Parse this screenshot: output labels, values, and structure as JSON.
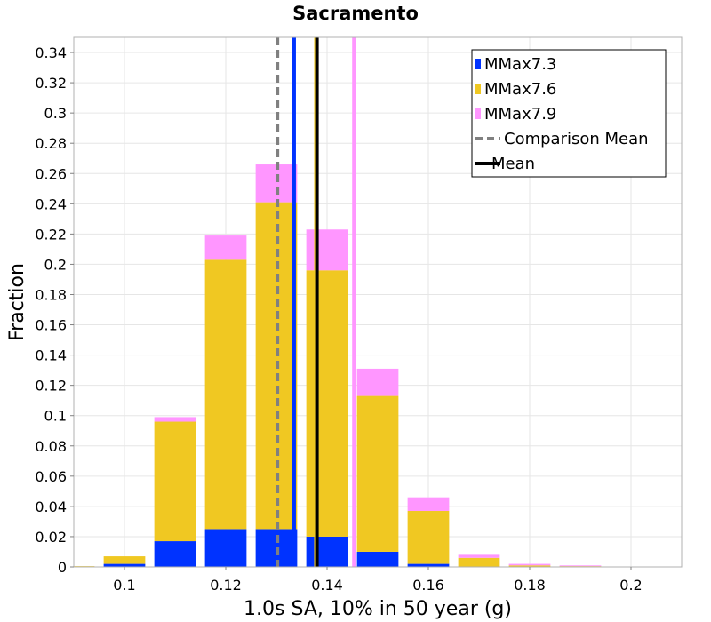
{
  "chart_data": {
    "type": "bar",
    "stacked": true,
    "title": "Sacramento",
    "xlabel": "1.0s SA, 10% in 50 year (g)",
    "ylabel": "Fraction",
    "xlim": [
      0.09,
      0.21
    ],
    "ylim": [
      0,
      0.35
    ],
    "xticks": [
      0.1,
      0.12,
      0.14,
      0.16,
      0.18,
      0.2
    ],
    "xtick_labels": [
      "0.1",
      "0.12",
      "0.14",
      "0.16",
      "0.18",
      "0.2"
    ],
    "yticks": [
      0,
      0.02,
      0.04,
      0.06,
      0.08,
      0.1,
      0.12,
      0.14,
      0.16,
      0.18,
      0.2,
      0.22,
      0.24,
      0.26,
      0.28,
      0.3,
      0.32,
      0.34
    ],
    "ytick_labels": [
      "0",
      "0.02",
      "0.04",
      "0.06",
      "0.08",
      "0.1",
      "0.12",
      "0.14",
      "0.16",
      "0.18",
      "0.2",
      "0.22",
      "0.24",
      "0.26",
      "0.28",
      "0.3",
      "0.32",
      "0.34"
    ],
    "bin_width": 0.01,
    "bin_centers": [
      0.09,
      0.1,
      0.11,
      0.12,
      0.13,
      0.14,
      0.15,
      0.16,
      0.17,
      0.18,
      0.19,
      0.2
    ],
    "series": [
      {
        "name": "MMax7.3",
        "color": "#0033ff",
        "values": [
          0.0,
          0.002,
          0.017,
          0.025,
          0.025,
          0.02,
          0.01,
          0.002,
          0.0,
          0.0,
          0.0,
          0.0
        ]
      },
      {
        "name": "MMax7.6",
        "color": "#f0c822",
        "values": [
          0.0005,
          0.005,
          0.079,
          0.178,
          0.216,
          0.176,
          0.103,
          0.035,
          0.006,
          0.001,
          0.0005,
          0.0
        ]
      },
      {
        "name": "MMax7.9",
        "color": "#ff96ff",
        "values": [
          0.0,
          0.0,
          0.003,
          0.016,
          0.025,
          0.027,
          0.018,
          0.009,
          0.002,
          0.001,
          0.0005,
          0.0
        ]
      }
    ],
    "vertical_lines": [
      {
        "name": "MMax7.3 mean",
        "x": 0.1335,
        "color": "#0033ff",
        "style": "solid"
      },
      {
        "name": "MMax7.9 mean",
        "x": 0.1453,
        "color": "#ff96ff",
        "style": "solid"
      },
      {
        "name": "MMax7.6 mean",
        "x": 0.1378,
        "color": "#f0c822",
        "style": "solid"
      },
      {
        "name": "Mean",
        "x": 0.138,
        "color": "#000000",
        "style": "solid"
      },
      {
        "name": "Comparison Mean",
        "x": 0.1302,
        "color": "#808080",
        "style": "dashed"
      }
    ],
    "legend": {
      "position": "top-right",
      "entries": [
        {
          "label": "MMax7.3",
          "color": "#0033ff",
          "kind": "bar"
        },
        {
          "label": "MMax7.6",
          "color": "#f0c822",
          "kind": "bar"
        },
        {
          "label": "MMax7.9",
          "color": "#ff96ff",
          "kind": "bar"
        },
        {
          "label": "Comparison Mean",
          "color": "#808080",
          "kind": "dashed-line"
        },
        {
          "label": "Mean",
          "color": "#000000",
          "kind": "line"
        }
      ]
    },
    "grid": true
  }
}
